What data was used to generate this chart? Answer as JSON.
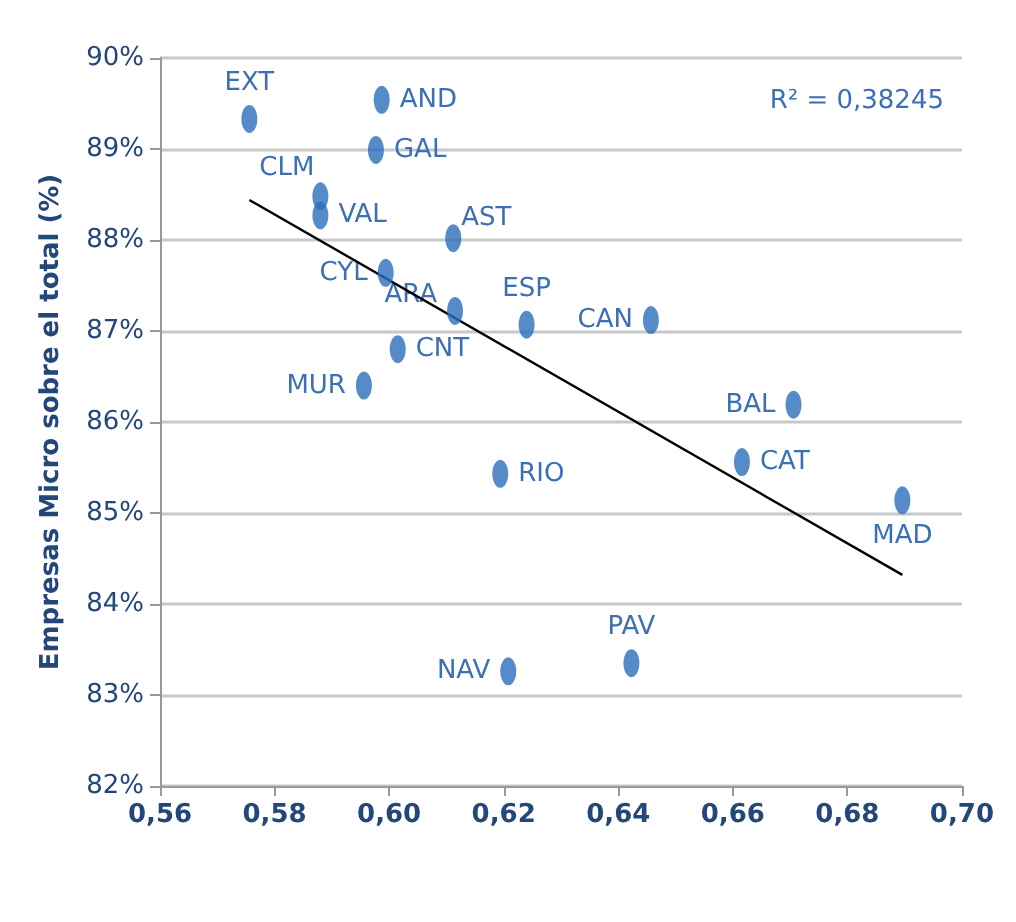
{
  "chart_data": {
    "type": "scatter",
    "ylabel": "Empresas Micro sobre el total (%)",
    "xlim": [
      0.56,
      0.7
    ],
    "xticks": [
      {
        "value": 0.56,
        "label": "0,56"
      },
      {
        "value": 0.58,
        "label": "0,58"
      },
      {
        "value": 0.6,
        "label": "0,60"
      },
      {
        "value": 0.62,
        "label": "0,62"
      },
      {
        "value": 0.64,
        "label": "0,64"
      },
      {
        "value": 0.66,
        "label": "0,66"
      },
      {
        "value": 0.68,
        "label": "0,68"
      },
      {
        "value": 0.7,
        "label": "0,70"
      }
    ],
    "ylim": [
      82,
      90
    ],
    "yticks": [
      {
        "value": 82,
        "label": "82%"
      },
      {
        "value": 83,
        "label": "83%"
      },
      {
        "value": 84,
        "label": "84%"
      },
      {
        "value": 85,
        "label": "85%"
      },
      {
        "value": 86,
        "label": "86%"
      },
      {
        "value": 87,
        "label": "87%"
      },
      {
        "value": 88,
        "label": "88%"
      },
      {
        "value": 89,
        "label": "89%"
      },
      {
        "value": 90,
        "label": "90%"
      }
    ],
    "grid": "y",
    "series": [
      {
        "marker": "circle",
        "color": "#2a6ebb",
        "x": [
          0.5756,
          0.5987,
          0.5977,
          0.588,
          0.588,
          0.6112,
          0.5994,
          0.6115,
          0.624,
          0.6457,
          0.6015,
          0.5956,
          0.6706,
          0.6194,
          0.6616,
          0.6896,
          0.6208,
          0.6423
        ],
        "values": [
          89.33,
          89.54,
          88.99,
          88.48,
          88.27,
          88.02,
          87.64,
          87.22,
          87.07,
          87.12,
          86.8,
          86.4,
          86.19,
          85.43,
          85.56,
          85.14,
          83.26,
          83.35
        ]
      },
      {
        "type": "line",
        "marker": "none",
        "color": "#000000",
        "x": [
          0.5756,
          0.6896
        ],
        "values": [
          88.44,
          84.32
        ]
      }
    ],
    "annotations": [
      {
        "text": "EXT",
        "x": 0.5756,
        "y": 89.33
      },
      {
        "text": "AND",
        "x": 0.5987,
        "y": 89.54
      },
      {
        "text": "GAL",
        "x": 0.5977,
        "y": 88.99
      },
      {
        "text": "CLM",
        "x": 0.588,
        "y": 88.48
      },
      {
        "text": "VAL",
        "x": 0.588,
        "y": 88.27
      },
      {
        "text": "AST",
        "x": 0.6112,
        "y": 88.02
      },
      {
        "text": "CYL",
        "x": 0.5994,
        "y": 87.64
      },
      {
        "text": "ARA",
        "x": 0.6115,
        "y": 87.22
      },
      {
        "text": "ESP",
        "x": 0.624,
        "y": 87.07
      },
      {
        "text": "CAN",
        "x": 0.6457,
        "y": 87.12
      },
      {
        "text": "CNT",
        "x": 0.6015,
        "y": 86.8
      },
      {
        "text": "MUR",
        "x": 0.5956,
        "y": 86.4
      },
      {
        "text": "BAL",
        "x": 0.6706,
        "y": 86.19
      },
      {
        "text": "RIO",
        "x": 0.6194,
        "y": 85.43
      },
      {
        "text": "CAT",
        "x": 0.6616,
        "y": 85.56
      },
      {
        "text": "MAD",
        "x": 0.6896,
        "y": 85.14
      },
      {
        "text": "NAV",
        "x": 0.6208,
        "y": 83.26
      },
      {
        "text": "PAV",
        "x": 0.6423,
        "y": 83.35
      },
      "R² = 0,38245"
    ]
  }
}
